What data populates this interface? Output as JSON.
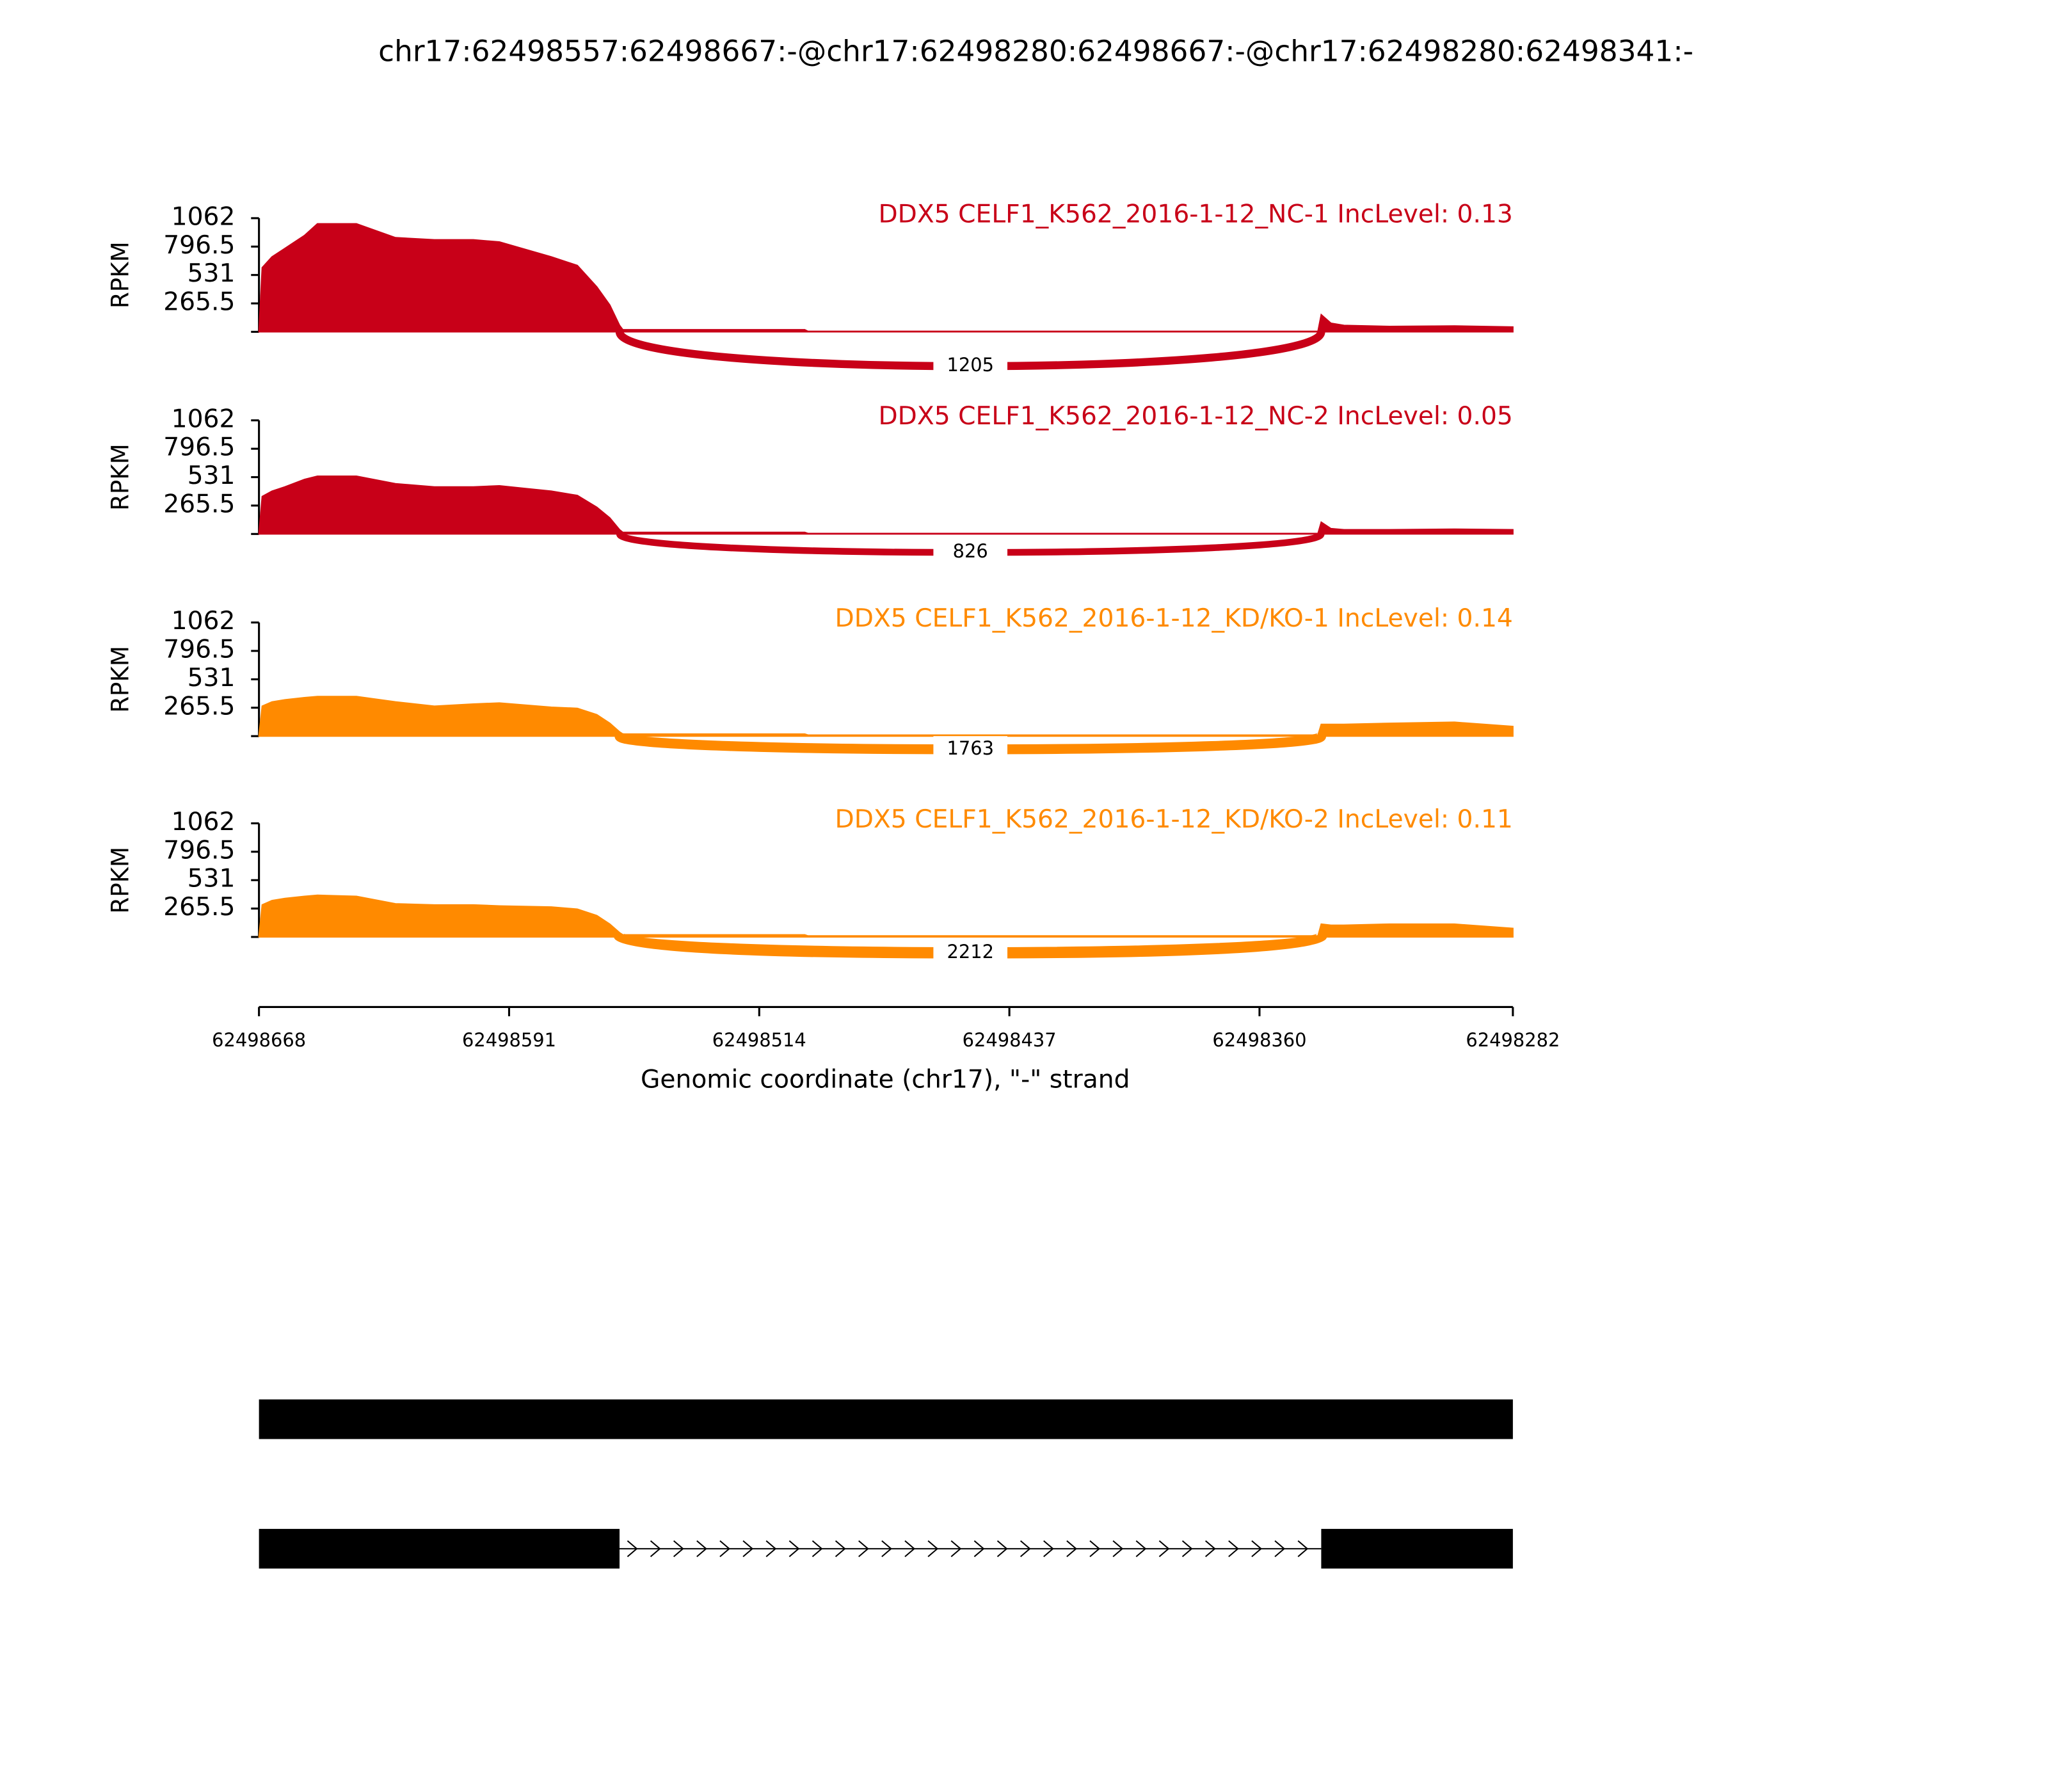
{
  "chart_data": {
    "type": "sashimi",
    "title": "chr17:62498557:62498667:-@chr17:62498280:62498667:-@chr17:62498280:62498341:-",
    "xlabel": "Genomic coordinate (chr17), \"-\" strand",
    "ylabel": "RPKM",
    "xlim": [
      62498668,
      62498282
    ],
    "xticks": [
      62498668,
      62498591,
      62498514,
      62498437,
      62498360,
      62498282
    ],
    "ylim": [
      0,
      1062
    ],
    "yticks": [
      265.5,
      531,
      796.5,
      1062
    ],
    "x": [
      62498668,
      62498667,
      62498664,
      62498660,
      62498654,
      62498650,
      62498638,
      62498626,
      62498614,
      62498602,
      62498594,
      62498578,
      62498570,
      62498564,
      62498560,
      62498557,
      62498556,
      62498500,
      62498499,
      62498342,
      62498341,
      62498338,
      62498334,
      62498320,
      62498300,
      62498282
    ],
    "junction": [
      62498557,
      62498341
    ],
    "panels": [
      {
        "label": "DDX5 CELF1_K562_2016-1-12_NC-1 IncLevel: 0.13",
        "color": "#c80018",
        "values": [
          0,
          600,
          700,
          780,
          900,
          1010,
          1010,
          880,
          860,
          860,
          840,
          700,
          620,
          420,
          250,
          60,
          20,
          20,
          5,
          5,
          160,
          80,
          60,
          50,
          55,
          45
        ],
        "junction_count": 1205
      },
      {
        "label": "DDX5 CELF1_K562_2016-1-12_NC-2 IncLevel: 0.05",
        "color": "#c80018",
        "values": [
          0,
          350,
          400,
          440,
          510,
          540,
          540,
          470,
          440,
          440,
          450,
          400,
          360,
          250,
          150,
          40,
          15,
          15,
          5,
          5,
          110,
          50,
          40,
          40,
          45,
          40
        ],
        "junction_count": 826
      },
      {
        "label": "DDX5 CELF1_K562_2016-1-12_KD/KO-1 IncLevel: 0.14",
        "color": "#ff8a00",
        "values": [
          0,
          280,
          320,
          340,
          360,
          370,
          370,
          320,
          280,
          300,
          310,
          270,
          260,
          200,
          120,
          40,
          20,
          20,
          10,
          10,
          110,
          110,
          110,
          120,
          130,
          90
        ],
        "junction_count": 1763
      },
      {
        "label": "DDX5 CELF1_K562_2016-1-12_KD/KO-2 IncLevel: 0.11",
        "color": "#ff8a00",
        "values": [
          0,
          300,
          340,
          360,
          380,
          390,
          380,
          310,
          300,
          300,
          290,
          280,
          260,
          200,
          120,
          40,
          20,
          20,
          10,
          10,
          120,
          110,
          110,
          120,
          120,
          80
        ],
        "junction_count": 2212
      }
    ],
    "transcripts": [
      {
        "exons": [
          [
            62498668,
            62498282
          ]
        ]
      },
      {
        "exons": [
          [
            62498668,
            62498557
          ],
          [
            62498341,
            62498282
          ]
        ]
      }
    ]
  }
}
